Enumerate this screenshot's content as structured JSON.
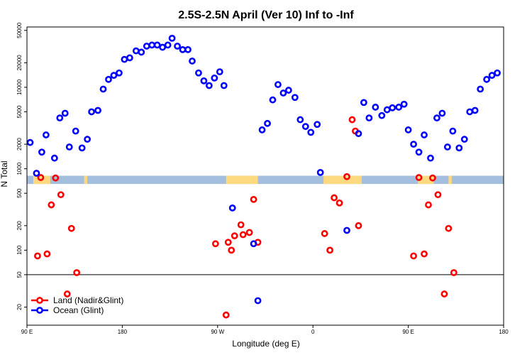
{
  "chart_data": {
    "type": "scatter",
    "title": "2.5S-2.5N April (Ver 10)   Inf to -Inf",
    "xlabel": "Longitude (deg E)",
    "ylabel": "N Total",
    "yscale": "log",
    "xlim": [
      90,
      540
    ],
    "ylim": [
      12,
      55000
    ],
    "x_ticks": [
      {
        "value": 90,
        "label": "90 E"
      },
      {
        "value": 180,
        "label": "180"
      },
      {
        "value": 270,
        "label": "90 W"
      },
      {
        "value": 360,
        "label": "0"
      },
      {
        "value": 450,
        "label": "90 E"
      },
      {
        "value": 540,
        "label": "180"
      }
    ],
    "y_ticks": [
      {
        "value": 20,
        "label": "20"
      },
      {
        "value": 50,
        "label": "50"
      },
      {
        "value": 100,
        "label": "100"
      },
      {
        "value": 200,
        "label": "200"
      },
      {
        "value": 500,
        "label": "500"
      },
      {
        "value": 1000,
        "label": "1000"
      },
      {
        "value": 2000,
        "label": "2000"
      },
      {
        "value": 5000,
        "label": "5000"
      },
      {
        "value": 10000,
        "label": "10000"
      },
      {
        "value": 20000,
        "label": "20000"
      },
      {
        "value": 50000,
        "label": "50000"
      }
    ],
    "reference_line": 50,
    "map_strip": {
      "y_range": [
        650,
        820
      ],
      "ocean_color": "#a4bfdd",
      "land_color": "#fdd97f",
      "land_spans": [
        [
          96,
          112
        ],
        [
          144,
          147
        ],
        [
          278,
          308
        ],
        [
          370,
          406
        ],
        [
          459,
          474
        ],
        [
          488,
          491
        ]
      ]
    },
    "series": [
      {
        "name": "Land (Nadir&Glint)",
        "color": "#ff0000",
        "points": [
          [
            100,
            85
          ],
          [
            103,
            780
          ],
          [
            109,
            90
          ],
          [
            113,
            360
          ],
          [
            117,
            770
          ],
          [
            122,
            480
          ],
          [
            128,
            29
          ],
          [
            132,
            185
          ],
          [
            137,
            53
          ],
          [
            268,
            120
          ],
          [
            278,
            16
          ],
          [
            280,
            125
          ],
          [
            283,
            100
          ],
          [
            286,
            150
          ],
          [
            292,
            205
          ],
          [
            294,
            155
          ],
          [
            300,
            165
          ],
          [
            304,
            420
          ],
          [
            308,
            125
          ],
          [
            371,
            160
          ],
          [
            376,
            100
          ],
          [
            380,
            440
          ],
          [
            385,
            380
          ],
          [
            392,
            800
          ],
          [
            397,
            4000
          ],
          [
            400,
            2900
          ],
          [
            403,
            200
          ],
          [
            455,
            85
          ],
          [
            460,
            780
          ],
          [
            465,
            90
          ],
          [
            469,
            360
          ],
          [
            473,
            770
          ],
          [
            478,
            480
          ],
          [
            484,
            29
          ],
          [
            488,
            185
          ],
          [
            493,
            53
          ]
        ]
      },
      {
        "name": "Ocean (Glint)",
        "color": "#0000ff",
        "points": [
          [
            93,
            2100
          ],
          [
            99,
            880
          ],
          [
            104,
            1600
          ],
          [
            108,
            2600
          ],
          [
            116,
            1350
          ],
          [
            121,
            4200
          ],
          [
            126,
            4800
          ],
          [
            130,
            1850
          ],
          [
            136,
            2900
          ],
          [
            142,
            1800
          ],
          [
            147,
            2300
          ],
          [
            151,
            5000
          ],
          [
            157,
            5200
          ],
          [
            162,
            9500
          ],
          [
            167,
            12500
          ],
          [
            172,
            14000
          ],
          [
            177,
            15000
          ],
          [
            182,
            22000
          ],
          [
            187,
            23000
          ],
          [
            193,
            28000
          ],
          [
            198,
            27000
          ],
          [
            203,
            32000
          ],
          [
            208,
            33000
          ],
          [
            213,
            33000
          ],
          [
            218,
            31000
          ],
          [
            223,
            33000
          ],
          [
            227,
            40000
          ],
          [
            232,
            32000
          ],
          [
            237,
            29000
          ],
          [
            242,
            29000
          ],
          [
            246,
            21000
          ],
          [
            252,
            15000
          ],
          [
            257,
            12000
          ],
          [
            262,
            10500
          ],
          [
            267,
            13000
          ],
          [
            272,
            15500
          ],
          [
            276,
            10500
          ],
          [
            284,
            330
          ],
          [
            304,
            120
          ],
          [
            308,
            24
          ],
          [
            312,
            3000
          ],
          [
            317,
            3600
          ],
          [
            322,
            7000
          ],
          [
            327,
            10800
          ],
          [
            332,
            8500
          ],
          [
            337,
            9200
          ],
          [
            343,
            7500
          ],
          [
            348,
            4000
          ],
          [
            353,
            3300
          ],
          [
            358,
            2800
          ],
          [
            364,
            3500
          ],
          [
            367,
            900
          ],
          [
            392,
            175
          ],
          [
            403,
            2700
          ],
          [
            408,
            6500
          ],
          [
            413,
            4200
          ],
          [
            419,
            5700
          ],
          [
            425,
            4500
          ],
          [
            430,
            5300
          ],
          [
            435,
            5600
          ],
          [
            441,
            5700
          ],
          [
            446,
            6200
          ],
          [
            450,
            3000
          ],
          [
            455,
            2000
          ],
          [
            460,
            1600
          ],
          [
            465,
            2600
          ],
          [
            471,
            1350
          ],
          [
            477,
            4200
          ],
          [
            482,
            4800
          ],
          [
            487,
            1850
          ],
          [
            492,
            2900
          ],
          [
            498,
            1800
          ],
          [
            503,
            2300
          ],
          [
            508,
            5000
          ],
          [
            513,
            5200
          ],
          [
            518,
            9500
          ],
          [
            524,
            12500
          ],
          [
            529,
            14000
          ],
          [
            534,
            15000
          ]
        ]
      }
    ],
    "legend": {
      "position": "bottom-left",
      "entries": [
        {
          "label": "Land (Nadir&Glint)",
          "color": "#ff0000"
        },
        {
          "label": "Ocean (Glint)",
          "color": "#0000ff"
        }
      ]
    }
  }
}
